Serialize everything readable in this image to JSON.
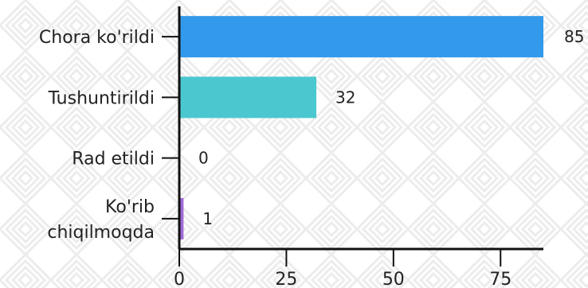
{
  "chart_data": {
    "type": "bar",
    "orientation": "horizontal",
    "categories": [
      "Chora ko'rildi",
      "Tushuntirildi",
      "Rad etildi",
      "Ko'rib chiqilmoqda"
    ],
    "category_lines": [
      [
        "Chora ko'rildi"
      ],
      [
        "Tushuntirildi"
      ],
      [
        "Rad etildi"
      ],
      [
        "Ko'rib",
        "chiqilmoqda"
      ]
    ],
    "values": [
      85,
      32,
      0,
      1
    ],
    "value_labels": [
      "85",
      "32",
      "0",
      "1"
    ],
    "bar_colors": [
      "#3399ea",
      "#4bc8cf",
      "#4bc8cf",
      "#a06ad6"
    ],
    "x_ticks": [
      0,
      25,
      50,
      75
    ],
    "x_tick_labels": [
      "0",
      "25",
      "50",
      "75"
    ],
    "xlim": [
      0,
      85
    ],
    "title": "",
    "xlabel": "",
    "ylabel": "",
    "grid": false,
    "background_pattern": "light-gray-diamond-chevrons"
  }
}
